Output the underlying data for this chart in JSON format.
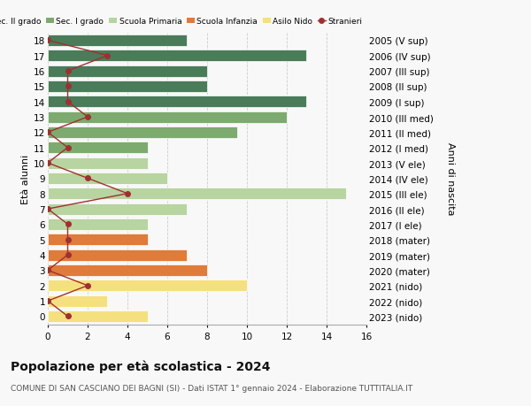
{
  "ages": [
    18,
    17,
    16,
    15,
    14,
    13,
    12,
    11,
    10,
    9,
    8,
    7,
    6,
    5,
    4,
    3,
    2,
    1,
    0
  ],
  "anni_nascita": [
    "2005 (V sup)",
    "2006 (IV sup)",
    "2007 (III sup)",
    "2008 (II sup)",
    "2009 (I sup)",
    "2010 (III med)",
    "2011 (II med)",
    "2012 (I med)",
    "2013 (V ele)",
    "2014 (IV ele)",
    "2015 (III ele)",
    "2016 (II ele)",
    "2017 (I ele)",
    "2018 (mater)",
    "2019 (mater)",
    "2020 (mater)",
    "2021 (nido)",
    "2022 (nido)",
    "2023 (nido)"
  ],
  "bar_values": [
    7,
    13,
    8,
    8,
    13,
    12,
    9.5,
    5,
    5,
    6,
    15,
    7,
    5,
    5,
    7,
    8,
    10,
    3,
    5
  ],
  "bar_colors": [
    "#4a7c59",
    "#4a7c59",
    "#4a7c59",
    "#4a7c59",
    "#4a7c59",
    "#7daa6e",
    "#7daa6e",
    "#7daa6e",
    "#b8d4a0",
    "#b8d4a0",
    "#b8d4a0",
    "#b8d4a0",
    "#b8d4a0",
    "#e07b39",
    "#e07b39",
    "#e07b39",
    "#f5e080",
    "#f5e080",
    "#f5e080"
  ],
  "stranieri_values": [
    0,
    3,
    1,
    1,
    1,
    2,
    0,
    1,
    0,
    2,
    4,
    0,
    1,
    1,
    1,
    0,
    2,
    0,
    1
  ],
  "title": "Popolazione per età scolastica - 2024",
  "subtitle": "COMUNE DI SAN CASCIANO DEI BAGNI (SI) - Dati ISTAT 1° gennaio 2024 - Elaborazione TUTTITALIA.IT",
  "ylabel_left": "Età alunni",
  "ylabel_right": "Anni di nascita",
  "xlim": [
    0,
    16
  ],
  "xticks": [
    0,
    2,
    4,
    6,
    8,
    10,
    12,
    14,
    16
  ],
  "legend_labels": [
    "Sec. II grado",
    "Sec. I grado",
    "Scuola Primaria",
    "Scuola Infanzia",
    "Asilo Nido",
    "Stranieri"
  ],
  "legend_colors": [
    "#4a7c59",
    "#7daa6e",
    "#b8d4a0",
    "#e07b39",
    "#f5e080",
    "#a03030"
  ],
  "stranieri_color": "#a03030",
  "background_color": "#f8f8f8",
  "grid_color": "#cccccc",
  "bar_height": 0.75,
  "title_fontsize": 10,
  "subtitle_fontsize": 6.5,
  "axis_fontsize": 7.5,
  "legend_fontsize": 6.5,
  "ylabel_fontsize": 8
}
